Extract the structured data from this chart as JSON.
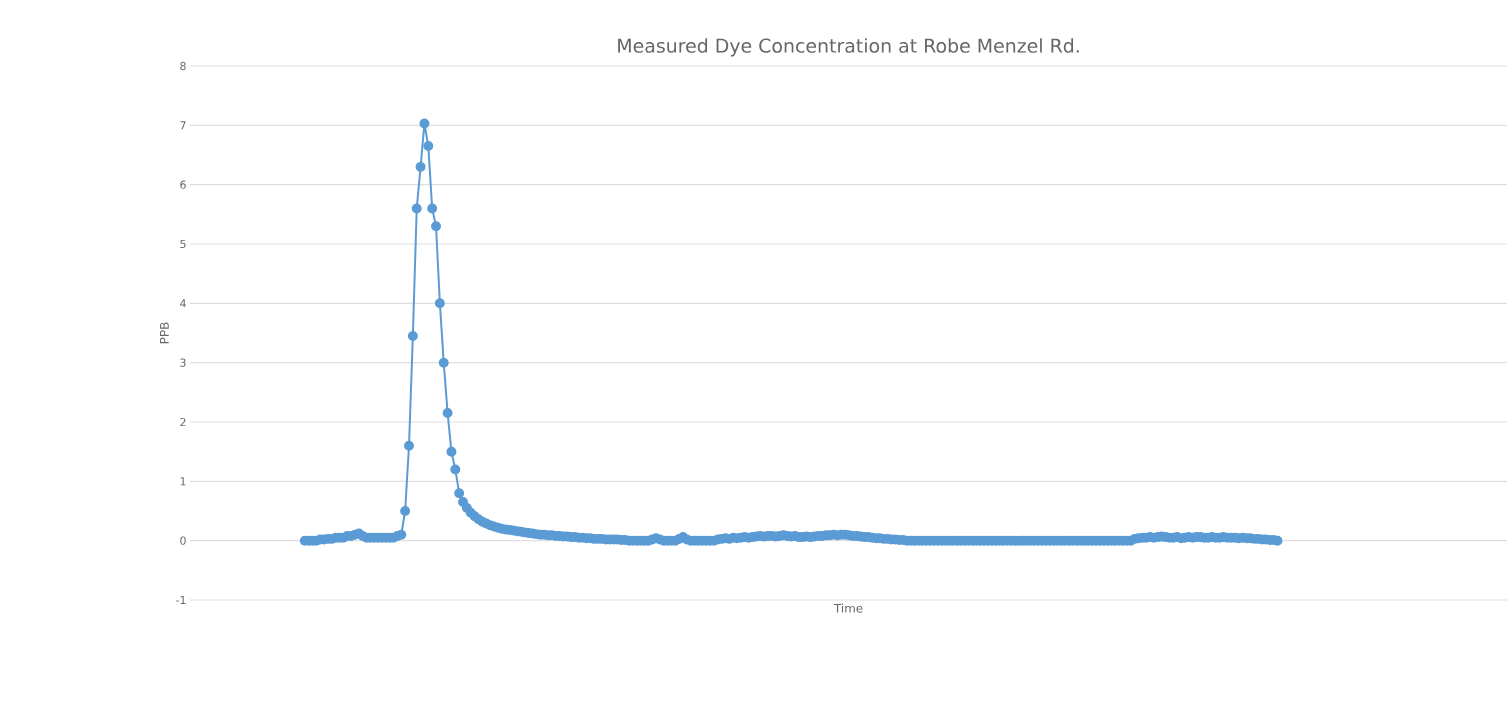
{
  "chart_data": {
    "type": "line",
    "title": "Measured Dye Concentration at Robe Menzel Rd.",
    "xlabel": "Time",
    "ylabel": "PPB",
    "categories": [
      null,
      null,
      null,
      null,
      null,
      null,
      null,
      null,
      null,
      null,
      null,
      null,
      null,
      null,
      null,
      null,
      null,
      null,
      null,
      null,
      null,
      null,
      null,
      null,
      null,
      null,
      null,
      null,
      null,
      null,
      null,
      null,
      null,
      null,
      null,
      null,
      null,
      null,
      null,
      null,
      null,
      null,
      null,
      null,
      null,
      null,
      null,
      null,
      null,
      null,
      null,
      null,
      null,
      null,
      null,
      null,
      null,
      null,
      null,
      null,
      null,
      null,
      null,
      null,
      null,
      null,
      null,
      null,
      null,
      null,
      null,
      null,
      null,
      null,
      null,
      null,
      null,
      null,
      null,
      null,
      null,
      null,
      null,
      null,
      null,
      null,
      null,
      null,
      null,
      null,
      null,
      null,
      null,
      null,
      null,
      null,
      null,
      null,
      null,
      null,
      null,
      null,
      null,
      null,
      null,
      null,
      null,
      null,
      null,
      null,
      null,
      null,
      null,
      null,
      null,
      null,
      null,
      null,
      null,
      null,
      null,
      null,
      null,
      null,
      null,
      null,
      null,
      null,
      null,
      null,
      null,
      null,
      null,
      null,
      null,
      null,
      null,
      null,
      null,
      null,
      null,
      null,
      null,
      null,
      null,
      null,
      null,
      null,
      null,
      null,
      null,
      null,
      null,
      null,
      null,
      null,
      null,
      null,
      null,
      null,
      null,
      null,
      null,
      null,
      null,
      null,
      null,
      null,
      null,
      null,
      null,
      null,
      null,
      null,
      null,
      null,
      null,
      null,
      null,
      null,
      null,
      null,
      null,
      null,
      null,
      null,
      null,
      null,
      null,
      null,
      null,
      null,
      null,
      null,
      null,
      null,
      null,
      null,
      null,
      null,
      null,
      null,
      null,
      null,
      null,
      null,
      null,
      null,
      null,
      null,
      null,
      null,
      null,
      null,
      null,
      null,
      null,
      null,
      null,
      null,
      null,
      null,
      null,
      null,
      null,
      null,
      null,
      null,
      null,
      null,
      null,
      null,
      null,
      null,
      null,
      null,
      null,
      null,
      null,
      null,
      null,
      null,
      null,
      null,
      null,
      null,
      null,
      null,
      null,
      null,
      null,
      null,
      null
    ],
    "ylim": [
      -1,
      8
    ],
    "yticks": [
      -1,
      0,
      1,
      2,
      3,
      4,
      5,
      6,
      7,
      8
    ],
    "grid": "y",
    "marker": "circle",
    "line_style": "solid",
    "series": [
      {
        "color": "#5b9bd5",
        "values": [
          0,
          0,
          0,
          0,
          0.02,
          0.02,
          0.03,
          0.03,
          0.05,
          0.05,
          0.05,
          0.08,
          0.08,
          0.1,
          0.12,
          0.08,
          0.05,
          0.05,
          0.05,
          0.05,
          0.05,
          0.05,
          0.05,
          0.05,
          0.08,
          0.1,
          0.5,
          1.6,
          3.45,
          5.6,
          6.3,
          7.03,
          6.65,
          5.6,
          5.3,
          4.0,
          3.0,
          2.15,
          1.5,
          1.2,
          0.8,
          0.65,
          0.55,
          0.47,
          0.41,
          0.36,
          0.32,
          0.29,
          0.26,
          0.24,
          0.22,
          0.2,
          0.19,
          0.18,
          0.17,
          0.16,
          0.15,
          0.14,
          0.13,
          0.12,
          0.11,
          0.1,
          0.1,
          0.09,
          0.09,
          0.08,
          0.08,
          0.07,
          0.07,
          0.06,
          0.06,
          0.05,
          0.05,
          0.04,
          0.04,
          0.03,
          0.03,
          0.03,
          0.02,
          0.02,
          0.02,
          0.02,
          0.01,
          0.01,
          0,
          0,
          0,
          0,
          0,
          0,
          0.02,
          0.04,
          0.02,
          0,
          0,
          0,
          0,
          0.03,
          0.06,
          0.02,
          0,
          0,
          0,
          0,
          0,
          0,
          0,
          0.02,
          0.03,
          0.04,
          0.03,
          0.05,
          0.04,
          0.05,
          0.06,
          0.05,
          0.06,
          0.07,
          0.08,
          0.07,
          0.08,
          0.08,
          0.07,
          0.08,
          0.09,
          0.08,
          0.07,
          0.08,
          0.06,
          0.06,
          0.07,
          0.06,
          0.07,
          0.08,
          0.08,
          0.09,
          0.09,
          0.1,
          0.09,
          0.1,
          0.1,
          0.09,
          0.08,
          0.08,
          0.07,
          0.06,
          0.06,
          0.05,
          0.04,
          0.04,
          0.03,
          0.03,
          0.02,
          0.02,
          0.01,
          0.01,
          0,
          0,
          0,
          0,
          0,
          0,
          0,
          0,
          0,
          0,
          0,
          0,
          0,
          0,
          0,
          0,
          0,
          0,
          0,
          0,
          0,
          0,
          0,
          0,
          0,
          0,
          0,
          0,
          0,
          0,
          0,
          0,
          0,
          0,
          0,
          0,
          0,
          0,
          0,
          0,
          0,
          0,
          0,
          0,
          0,
          0,
          0,
          0,
          0,
          0,
          0,
          0,
          0,
          0,
          0,
          0,
          0,
          0,
          0,
          0.03,
          0.04,
          0.05,
          0.05,
          0.06,
          0.05,
          0.06,
          0.07,
          0.06,
          0.05,
          0.05,
          0.06,
          0.04,
          0.05,
          0.06,
          0.05,
          0.06,
          0.06,
          0.05,
          0.05,
          0.06,
          0.05,
          0.05,
          0.06,
          0.05,
          0.05,
          0.05,
          0.04,
          0.05,
          0.04,
          0.04,
          0.03,
          0.03,
          0.02,
          0.02,
          0.01,
          0.01,
          0
        ]
      }
    ]
  }
}
